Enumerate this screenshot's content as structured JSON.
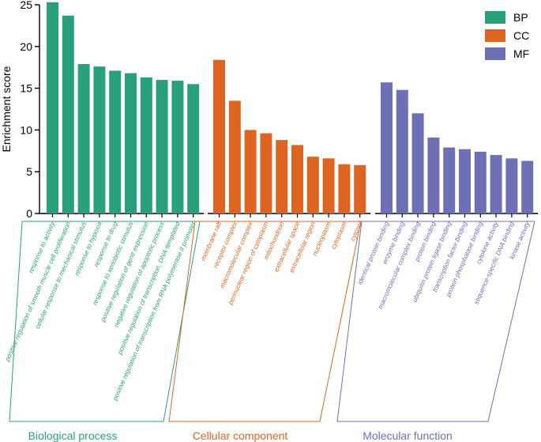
{
  "chart_data": {
    "type": "bar",
    "title": "",
    "xlabel": "",
    "ylabel": "Enrichment score",
    "ylim": [
      0,
      25
    ],
    "yticks": [
      0,
      5,
      10,
      15,
      20,
      25
    ],
    "grid": false,
    "legend_position": "top-right",
    "groups": [
      {
        "key": "BP",
        "name": "Biological process",
        "color": "#28a07b",
        "categories": [
          "response to activity",
          "positive regulation of smooth muscle cell proliferation",
          "cellular response to mechanical stimulus",
          "response to hypoxia",
          "response to drug",
          "response to xenobiotic stimulus",
          "positive regulation of gene expression",
          "negative regulation of apoptotic process",
          "positive regulation of transcription, DNA-templated",
          "positive regulation of transcription from RNA polymerase II promoter"
        ],
        "values": [
          25.3,
          23.7,
          17.9,
          17.6,
          17.1,
          16.8,
          16.3,
          16.0,
          15.9,
          15.5
        ]
      },
      {
        "key": "CC",
        "name": "Cellular component",
        "color": "#de6421",
        "categories": [
          "membrane raft",
          "receptor complex",
          "macromolecular complex",
          "perinuclear region of cytoplasm",
          "mitochondrion",
          "extracellular space",
          "extracellular region",
          "nucleoplasm",
          "cytoplasm",
          "cytosol"
        ],
        "values": [
          18.4,
          13.5,
          10.0,
          9.6,
          8.8,
          8.2,
          6.8,
          6.6,
          5.9,
          5.8
        ]
      },
      {
        "key": "MF",
        "name": "Molecular function",
        "color": "#6d70b5",
        "categories": [
          "identical protein binding",
          "enzyme binding",
          "macromolecular complex binding",
          "protein binding",
          "ubiquitin protein ligase binding",
          "transcription factor binding",
          "protein phosphatase binding",
          "cytokine activity",
          "sequence-specific DNA binding",
          "kinase activity"
        ],
        "values": [
          15.7,
          14.8,
          12.0,
          9.1,
          7.9,
          7.7,
          7.4,
          7.0,
          6.6,
          6.3
        ]
      }
    ]
  }
}
